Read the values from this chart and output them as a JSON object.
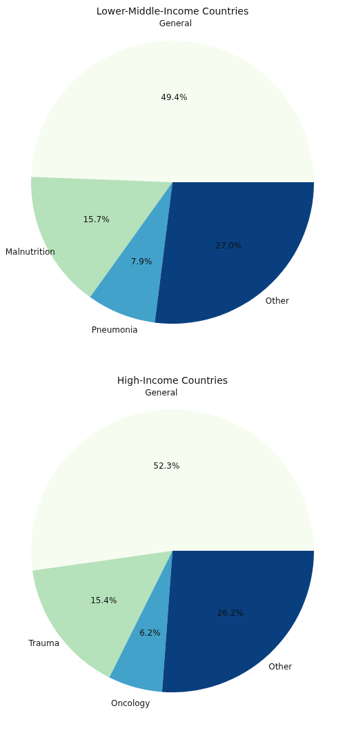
{
  "chart_data": [
    {
      "type": "pie",
      "title": "Lower-Middle-Income Countries",
      "categories": [
        "General",
        "Malnutrition",
        "Pneumonia",
        "Other"
      ],
      "values": [
        49.4,
        15.7,
        7.9,
        27.0
      ],
      "value_labels": [
        "49.4%",
        "15.7%",
        "7.9%",
        "27.0%"
      ],
      "colors": [
        "#f7fcf0",
        "#b5e1bb",
        "#43a2ca",
        "#0a3f7f"
      ]
    },
    {
      "type": "pie",
      "title": "High-Income Countries",
      "categories": [
        "General",
        "Trauma",
        "Oncology",
        "Other"
      ],
      "values": [
        52.3,
        15.4,
        6.2,
        26.2
      ],
      "value_labels": [
        "52.3%",
        "15.4%",
        "6.2%",
        "26.2%"
      ],
      "colors": [
        "#f7fcf0",
        "#b5e1bb",
        "#43a2ca",
        "#0a3f7f"
      ]
    }
  ]
}
